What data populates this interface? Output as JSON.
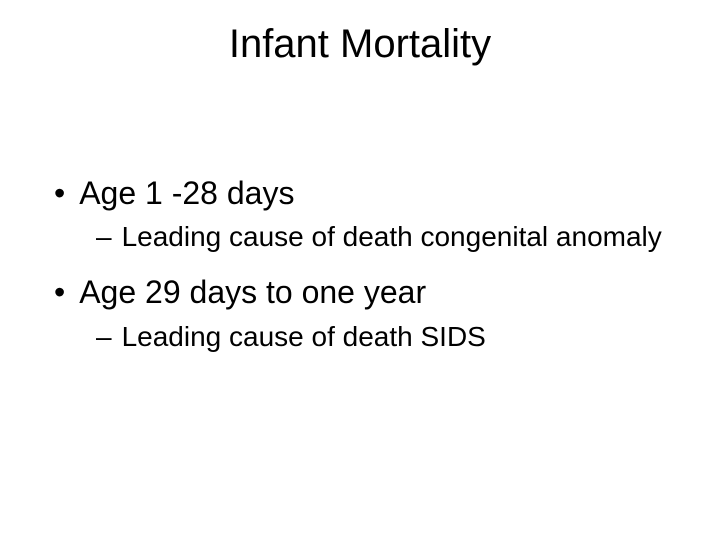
{
  "title": "Infant Mortality",
  "items": [
    {
      "text": "Age 1 -28 days",
      "sub": [
        {
          "text": "Leading cause of death congenital anomaly"
        }
      ]
    },
    {
      "text": "Age 29 days to one year",
      "sub": [
        {
          "text": "Leading cause of death SIDS"
        }
      ]
    }
  ],
  "style": {
    "background": "#ffffff",
    "text_color": "#000000",
    "title_fontsize": 40,
    "l1_fontsize": 32,
    "l2_fontsize": 28,
    "bullet_char": "•",
    "dash_char": "–"
  }
}
